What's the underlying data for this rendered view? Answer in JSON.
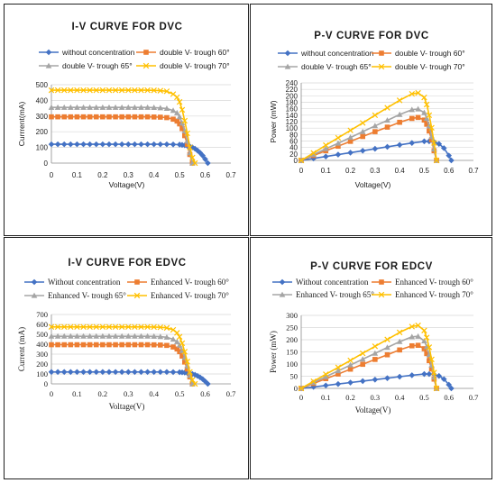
{
  "colors": {
    "blue": "#4472c4",
    "orange": "#ed7d31",
    "gray": "#a5a5a5",
    "yellow": "#ffc000"
  },
  "chart_data": [
    {
      "type": "line",
      "title": "I-V CURVE FOR DVC",
      "xlabel": "Voltage(V)",
      "ylabel": "Currrent(mA)",
      "xlim": [
        0,
        0.7
      ],
      "ylim": [
        0,
        500
      ],
      "xticks": [
        "0",
        "0.1",
        "0.2",
        "0.3",
        "0.4",
        "0.5",
        "0.6",
        "0.7"
      ],
      "yticks": [
        "0",
        "100",
        "200",
        "300",
        "400",
        "500"
      ],
      "series": [
        {
          "name": "without concentration",
          "color": "#4472c4",
          "marker": "diamond",
          "x": [
            0,
            0.025,
            0.05,
            0.075,
            0.1,
            0.125,
            0.15,
            0.175,
            0.2,
            0.225,
            0.25,
            0.275,
            0.3,
            0.325,
            0.35,
            0.375,
            0.4,
            0.425,
            0.45,
            0.475,
            0.5,
            0.51,
            0.52,
            0.53,
            0.54,
            0.55,
            0.56,
            0.57,
            0.58,
            0.59,
            0.6,
            0.61
          ],
          "y": [
            120,
            120,
            120,
            120,
            120,
            120,
            120,
            120,
            120,
            120,
            120,
            120,
            120,
            120,
            120,
            120,
            120,
            120,
            120,
            119,
            118,
            116,
            114,
            110,
            106,
            100,
            92,
            80,
            66,
            48,
            25,
            0
          ]
        },
        {
          "name": "double V- trough 60°",
          "color": "#ed7d31",
          "marker": "square",
          "x": [
            0,
            0.025,
            0.05,
            0.075,
            0.1,
            0.125,
            0.15,
            0.175,
            0.2,
            0.225,
            0.25,
            0.275,
            0.3,
            0.325,
            0.35,
            0.375,
            0.4,
            0.425,
            0.45,
            0.475,
            0.49,
            0.5,
            0.51,
            0.52,
            0.53,
            0.54,
            0.55
          ],
          "y": [
            295,
            295,
            295,
            295,
            295,
            295,
            295,
            295,
            295,
            295,
            295,
            295,
            295,
            295,
            295,
            295,
            294,
            293,
            290,
            280,
            268,
            250,
            220,
            175,
            120,
            55,
            0
          ]
        },
        {
          "name": "double V- trough 65°",
          "color": "#a5a5a5",
          "marker": "triangle",
          "x": [
            0,
            0.025,
            0.05,
            0.075,
            0.1,
            0.125,
            0.15,
            0.175,
            0.2,
            0.225,
            0.25,
            0.275,
            0.3,
            0.325,
            0.35,
            0.375,
            0.4,
            0.425,
            0.45,
            0.475,
            0.49,
            0.5,
            0.51,
            0.52,
            0.53,
            0.54,
            0.55
          ],
          "y": [
            355,
            355,
            355,
            355,
            355,
            355,
            355,
            355,
            355,
            355,
            355,
            355,
            355,
            355,
            355,
            355,
            354,
            352,
            348,
            335,
            320,
            295,
            255,
            205,
            140,
            65,
            0
          ]
        },
        {
          "name": "double V- trough 70°",
          "color": "#ffc000",
          "marker": "x",
          "x": [
            0,
            0.025,
            0.05,
            0.075,
            0.1,
            0.125,
            0.15,
            0.175,
            0.2,
            0.225,
            0.25,
            0.275,
            0.3,
            0.325,
            0.35,
            0.375,
            0.4,
            0.425,
            0.45,
            0.475,
            0.49,
            0.5,
            0.51,
            0.52,
            0.53,
            0.54,
            0.55,
            0.56
          ],
          "y": [
            465,
            465,
            465,
            465,
            465,
            465,
            465,
            465,
            465,
            465,
            465,
            465,
            465,
            465,
            465,
            465,
            464,
            462,
            458,
            440,
            420,
            390,
            340,
            270,
            190,
            100,
            35,
            0
          ]
        }
      ]
    },
    {
      "type": "line",
      "title": "P-V CURVE FOR DVC",
      "xlabel": "Voltage(V)",
      "ylabel": "Power (mW)",
      "xlim": [
        0,
        0.7
      ],
      "ylim": [
        0,
        240
      ],
      "xticks": [
        "0",
        "0.1",
        "0.2",
        "0.3",
        "0.4",
        "0.5",
        "0.6",
        "0.7"
      ],
      "yticks": [
        "0",
        "20",
        "40",
        "60",
        "80",
        "100",
        "120",
        "140",
        "160",
        "180",
        "200",
        "220",
        "240"
      ],
      "series": [
        {
          "name": "without concentration",
          "color": "#4472c4",
          "marker": "diamond",
          "x": [
            0,
            0.05,
            0.1,
            0.15,
            0.2,
            0.25,
            0.3,
            0.35,
            0.4,
            0.45,
            0.5,
            0.52,
            0.54,
            0.56,
            0.58,
            0.6,
            0.61
          ],
          "y": [
            0,
            6,
            12,
            18,
            24,
            30,
            36,
            42,
            48,
            54,
            59,
            59,
            57,
            51,
            38,
            15,
            0
          ]
        },
        {
          "name": "double V- trough 60°",
          "color": "#ed7d31",
          "marker": "square",
          "x": [
            0,
            0.05,
            0.1,
            0.15,
            0.2,
            0.25,
            0.3,
            0.35,
            0.4,
            0.45,
            0.475,
            0.5,
            0.51,
            0.52,
            0.53,
            0.54,
            0.55
          ],
          "y": [
            0,
            15,
            30,
            44,
            59,
            74,
            89,
            103,
            118,
            130,
            133,
            125,
            112,
            91,
            64,
            30,
            0
          ]
        },
        {
          "name": "double V- trough 65°",
          "color": "#a5a5a5",
          "marker": "triangle",
          "x": [
            0,
            0.05,
            0.1,
            0.15,
            0.2,
            0.25,
            0.3,
            0.35,
            0.4,
            0.45,
            0.475,
            0.5,
            0.51,
            0.52,
            0.53,
            0.54,
            0.55
          ],
          "y": [
            0,
            18,
            36,
            53,
            71,
            89,
            107,
            124,
            142,
            157,
            159,
            148,
            130,
            107,
            74,
            35,
            0
          ]
        },
        {
          "name": "double V- trough 70°",
          "color": "#ffc000",
          "marker": "x",
          "x": [
            0,
            0.05,
            0.1,
            0.15,
            0.2,
            0.25,
            0.3,
            0.35,
            0.4,
            0.45,
            0.475,
            0.5,
            0.51,
            0.52,
            0.53,
            0.54,
            0.55
          ],
          "y": [
            0,
            23,
            47,
            70,
            93,
            116,
            140,
            163,
            186,
            206,
            209,
            195,
            173,
            140,
            101,
            54,
            0
          ]
        }
      ]
    },
    {
      "type": "line",
      "title": "I-V CURVE FOR EDVC",
      "xlabel": "Voltage(V)",
      "ylabel": "Current (mA)",
      "xlim": [
        0,
        0.7
      ],
      "ylim": [
        0,
        700
      ],
      "xticks": [
        "0",
        "0.1",
        "0.2",
        "0.3",
        "0.4",
        "0.5",
        "0.6",
        "0.7"
      ],
      "yticks": [
        "0",
        "100",
        "200",
        "300",
        "400",
        "500",
        "600",
        "700"
      ],
      "series": [
        {
          "name": "Without concentration",
          "color": "#4472c4",
          "marker": "diamond",
          "x": [
            0,
            0.025,
            0.05,
            0.075,
            0.1,
            0.125,
            0.15,
            0.175,
            0.2,
            0.225,
            0.25,
            0.275,
            0.3,
            0.325,
            0.35,
            0.375,
            0.4,
            0.425,
            0.45,
            0.475,
            0.5,
            0.51,
            0.52,
            0.53,
            0.54,
            0.55,
            0.56,
            0.57,
            0.58,
            0.59,
            0.6,
            0.61
          ],
          "y": [
            120,
            120,
            120,
            120,
            120,
            120,
            120,
            120,
            120,
            120,
            120,
            120,
            120,
            120,
            120,
            120,
            120,
            120,
            120,
            119,
            118,
            116,
            114,
            110,
            106,
            100,
            92,
            80,
            66,
            48,
            25,
            0
          ]
        },
        {
          "name": "Enhanced V- trough 60°",
          "color": "#ed7d31",
          "marker": "square",
          "x": [
            0,
            0.025,
            0.05,
            0.075,
            0.1,
            0.125,
            0.15,
            0.175,
            0.2,
            0.225,
            0.25,
            0.275,
            0.3,
            0.325,
            0.35,
            0.375,
            0.4,
            0.425,
            0.45,
            0.475,
            0.49,
            0.5,
            0.51,
            0.52,
            0.53,
            0.54,
            0.55
          ],
          "y": [
            395,
            395,
            395,
            395,
            395,
            395,
            395,
            395,
            395,
            395,
            395,
            395,
            395,
            395,
            395,
            395,
            394,
            392,
            388,
            372,
            352,
            325,
            280,
            220,
            150,
            70,
            0
          ]
        },
        {
          "name": "Enhanced V- trough 65°",
          "color": "#a5a5a5",
          "marker": "triangle",
          "x": [
            0,
            0.025,
            0.05,
            0.075,
            0.1,
            0.125,
            0.15,
            0.175,
            0.2,
            0.225,
            0.25,
            0.275,
            0.3,
            0.325,
            0.35,
            0.375,
            0.4,
            0.425,
            0.45,
            0.475,
            0.49,
            0.5,
            0.51,
            0.52,
            0.53,
            0.54,
            0.55
          ],
          "y": [
            480,
            480,
            480,
            480,
            480,
            480,
            480,
            480,
            480,
            480,
            480,
            480,
            480,
            480,
            480,
            480,
            479,
            476,
            470,
            450,
            425,
            390,
            335,
            265,
            180,
            85,
            0
          ]
        },
        {
          "name": "Enhanced V- trough 70°",
          "color": "#ffc000",
          "marker": "x",
          "x": [
            0,
            0.025,
            0.05,
            0.075,
            0.1,
            0.125,
            0.15,
            0.175,
            0.2,
            0.225,
            0.25,
            0.275,
            0.3,
            0.325,
            0.35,
            0.375,
            0.4,
            0.425,
            0.45,
            0.475,
            0.49,
            0.5,
            0.51,
            0.52,
            0.53,
            0.54,
            0.55,
            0.56
          ],
          "y": [
            575,
            575,
            575,
            575,
            575,
            575,
            575,
            575,
            575,
            575,
            575,
            575,
            575,
            575,
            575,
            575,
            574,
            571,
            565,
            545,
            515,
            475,
            410,
            325,
            225,
            120,
            40,
            0
          ]
        }
      ]
    },
    {
      "type": "line",
      "title": "P-V CURVE FOR EDCV",
      "xlabel": "Voltage(V)",
      "ylabel": "Power (mW)",
      "xlim": [
        0,
        0.7
      ],
      "ylim": [
        0,
        300
      ],
      "xticks": [
        "0",
        "0.1",
        "0.2",
        "0.3",
        "0.4",
        "0.5",
        "0.6",
        "0.7"
      ],
      "yticks": [
        "0",
        "50",
        "100",
        "150",
        "200",
        "250",
        "300"
      ],
      "series": [
        {
          "name": "Without concentration",
          "color": "#4472c4",
          "marker": "diamond",
          "x": [
            0,
            0.05,
            0.1,
            0.15,
            0.2,
            0.25,
            0.3,
            0.35,
            0.4,
            0.45,
            0.5,
            0.52,
            0.54,
            0.56,
            0.58,
            0.6,
            0.61
          ],
          "y": [
            0,
            6,
            12,
            18,
            24,
            30,
            36,
            42,
            48,
            54,
            59,
            59,
            57,
            51,
            38,
            15,
            0
          ]
        },
        {
          "name": "Enhanced V- trough 60°",
          "color": "#ed7d31",
          "marker": "square",
          "x": [
            0,
            0.05,
            0.1,
            0.15,
            0.2,
            0.25,
            0.3,
            0.35,
            0.4,
            0.45,
            0.475,
            0.5,
            0.51,
            0.52,
            0.53,
            0.54,
            0.55
          ],
          "y": [
            0,
            20,
            40,
            59,
            79,
            99,
            119,
            138,
            158,
            175,
            177,
            163,
            143,
            114,
            80,
            38,
            0
          ]
        },
        {
          "name": "Enhanced V- trough 65°",
          "color": "#a5a5a5",
          "marker": "triangle",
          "x": [
            0,
            0.05,
            0.1,
            0.15,
            0.2,
            0.25,
            0.3,
            0.35,
            0.4,
            0.45,
            0.475,
            0.5,
            0.51,
            0.52,
            0.53,
            0.54,
            0.55
          ],
          "y": [
            0,
            24,
            48,
            72,
            96,
            120,
            144,
            168,
            192,
            212,
            214,
            195,
            171,
            138,
            95,
            46,
            0
          ]
        },
        {
          "name": "Enhanced V- trough 70°",
          "color": "#ffc000",
          "marker": "x",
          "x": [
            0,
            0.05,
            0.1,
            0.15,
            0.2,
            0.25,
            0.3,
            0.35,
            0.4,
            0.45,
            0.475,
            0.5,
            0.51,
            0.52,
            0.53,
            0.54,
            0.55
          ],
          "y": [
            0,
            29,
            58,
            86,
            115,
            144,
            173,
            201,
            230,
            254,
            259,
            238,
            209,
            169,
            119,
            65,
            0
          ]
        }
      ]
    }
  ]
}
